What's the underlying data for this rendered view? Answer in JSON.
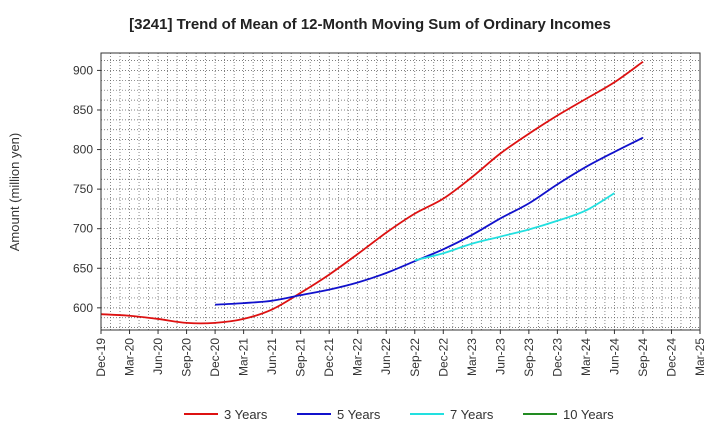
{
  "chart_data": {
    "type": "line",
    "title": "[3241]  Trend of Mean of 12-Month Moving Sum of Ordinary Incomes",
    "xlabel": "",
    "ylabel": "Amount (million yen)",
    "ylim": [
      572,
      922
    ],
    "yticks": [
      600,
      650,
      700,
      750,
      800,
      850,
      900
    ],
    "categories": [
      "Dec-19",
      "Mar-20",
      "Jun-20",
      "Sep-20",
      "Dec-20",
      "Mar-21",
      "Jun-21",
      "Sep-21",
      "Dec-21",
      "Mar-22",
      "Jun-22",
      "Sep-22",
      "Dec-22",
      "Mar-23",
      "Jun-23",
      "Sep-23",
      "Dec-23",
      "Mar-24",
      "Jun-24",
      "Sep-24",
      "Dec-24",
      "Mar-25"
    ],
    "grid": true,
    "legend_position": "bottom",
    "series": [
      {
        "name": "3 Years",
        "color": "#dd1111",
        "values": [
          592,
          590,
          586,
          581,
          581,
          586,
          598,
          619,
          642,
          668,
          695,
          719,
          738,
          765,
          795,
          820,
          843,
          864,
          885,
          911,
          null,
          null
        ]
      },
      {
        "name": "5 Years",
        "color": "#1111cc",
        "values": [
          null,
          null,
          null,
          null,
          604,
          606,
          609,
          616,
          623,
          632,
          644,
          659,
          674,
          692,
          713,
          732,
          756,
          778,
          797,
          815,
          null,
          null
        ]
      },
      {
        "name": "7 Years",
        "color": "#22e0e0",
        "values": [
          null,
          null,
          null,
          null,
          null,
          null,
          null,
          null,
          null,
          null,
          null,
          660,
          669,
          681,
          690,
          699,
          710,
          723,
          745,
          null,
          null,
          null
        ]
      },
      {
        "name": "10 Years",
        "color": "#228B22",
        "values": [
          null,
          null,
          null,
          null,
          null,
          null,
          null,
          null,
          null,
          null,
          null,
          null,
          null,
          null,
          null,
          null,
          null,
          null,
          null,
          null,
          null,
          null
        ]
      }
    ]
  }
}
